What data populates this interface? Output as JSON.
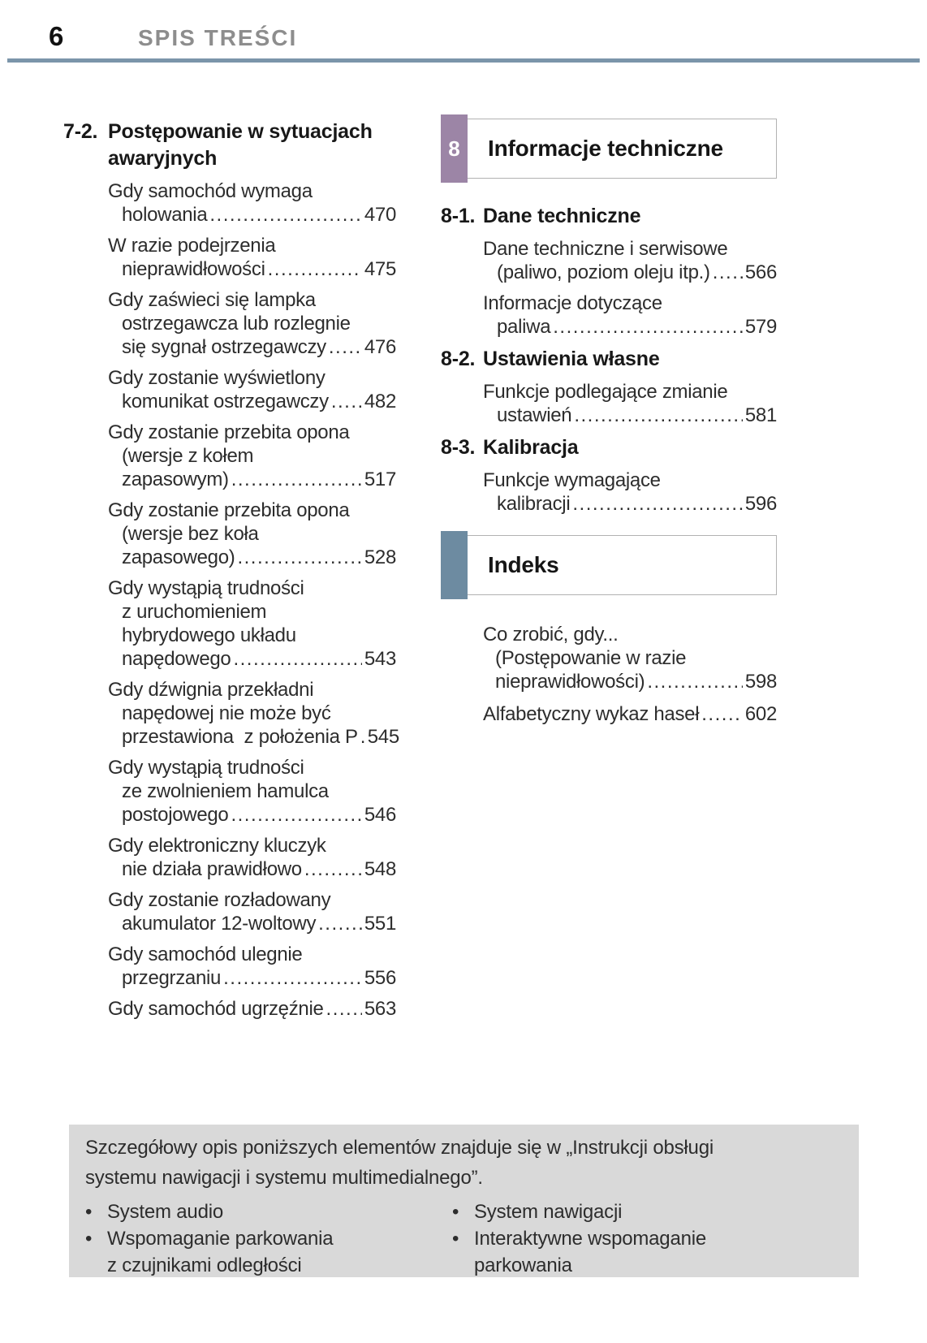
{
  "header": {
    "page_number": "6",
    "title": "SPIS TREŚCI"
  },
  "colors": {
    "rule": "#7b95aa",
    "chapter_tab": "#9c85a6",
    "index_tab": "#6d8ba1",
    "note_bg": "#d9d9d9",
    "title_gray": "#8d8d8d"
  },
  "left_column": {
    "section": {
      "number": "7-2.",
      "title_lines": [
        "Postępowanie w sytuacjach",
        "awaryjnych"
      ]
    },
    "entries": [
      {
        "lines": [
          "Gdy samochód wymaga",
          "holowania"
        ],
        "page": "470"
      },
      {
        "lines": [
          "W razie podejrzenia",
          "nieprawidłowości"
        ],
        "page": "475"
      },
      {
        "lines": [
          "Gdy zaświeci się lampka",
          "ostrzegawcza lub rozlegnie",
          "się sygnał ostrzegawczy"
        ],
        "page": "476"
      },
      {
        "lines": [
          "Gdy zostanie wyświetlony",
          "komunikat ostrzegawczy"
        ],
        "page": "482"
      },
      {
        "lines": [
          "Gdy zostanie przebita opona",
          "(wersje z kołem",
          "zapasowym)"
        ],
        "page": "517"
      },
      {
        "lines": [
          "Gdy zostanie przebita opona",
          "(wersje bez koła",
          "zapasowego)"
        ],
        "page": "528"
      },
      {
        "lines": [
          "Gdy wystąpią trudności",
          "z uruchomieniem",
          "hybrydowego układu",
          "napędowego"
        ],
        "page": "543"
      },
      {
        "lines": [
          "Gdy dźwignia przekładni",
          "napędowej nie może być",
          "przestawiona  z położenia P"
        ],
        "page": "545"
      },
      {
        "lines": [
          "Gdy wystąpią trudności",
          "ze zwolnieniem hamulca",
          "postojowego"
        ],
        "page": "546"
      },
      {
        "lines": [
          "Gdy elektroniczny kluczyk",
          "nie działa prawidłowo"
        ],
        "page": "548"
      },
      {
        "lines": [
          "Gdy zostanie rozładowany",
          "akumulator 12-woltowy"
        ],
        "page": "551"
      },
      {
        "lines": [
          "Gdy samochód ulegnie",
          "przegrzaniu"
        ],
        "page": "556"
      },
      {
        "lines": [
          "Gdy samochód ugrzęźnie"
        ],
        "page": "563"
      }
    ]
  },
  "right_column": {
    "chapter": {
      "number": "8",
      "title": "Informacje techniczne",
      "tab_color": "#9c85a6"
    },
    "sections": [
      {
        "number": "8-1.",
        "title": "Dane techniczne",
        "entries": [
          {
            "lines": [
              "Dane techniczne i serwisowe",
              "(paliwo, poziom oleju itp.)"
            ],
            "page": "566"
          },
          {
            "lines": [
              "Informacje dotyczące",
              "paliwa"
            ],
            "page": "579"
          }
        ]
      },
      {
        "number": "8-2.",
        "title": "Ustawienia własne",
        "entries": [
          {
            "lines": [
              "Funkcje podlegające zmianie",
              "ustawień"
            ],
            "page": "581"
          }
        ]
      },
      {
        "number": "8-3.",
        "title": "Kalibracja",
        "entries": [
          {
            "lines": [
              "Funkcje wymagające",
              "kalibracji"
            ],
            "page": "596"
          }
        ]
      }
    ],
    "index_box": {
      "title": "Indeks",
      "tab_color": "#6d8ba1"
    },
    "index_entries": [
      {
        "lines": [
          "Co zrobić, gdy...",
          "(Postępowanie w razie",
          "nieprawidłowości)"
        ],
        "page": "598"
      },
      {
        "lines": [
          "Alfabetyczny wykaz haseł"
        ],
        "page": "602"
      }
    ]
  },
  "footer_note": {
    "bullet": "•",
    "intro_lines": [
      "Szczegółowy opis poniższych elementów znajduje się w „Instrukcji obsługi",
      "systemu nawigacji i systemu multimedialnego”."
    ],
    "bullets_left": [
      {
        "lines": [
          "System audio"
        ]
      },
      {
        "lines": [
          "Wspomaganie parkowania",
          "z czujnikami odległości"
        ]
      }
    ],
    "bullets_right": [
      {
        "lines": [
          "System nawigacji"
        ]
      },
      {
        "lines": [
          "Interaktywne wspomaganie",
          "parkowania"
        ]
      }
    ]
  }
}
